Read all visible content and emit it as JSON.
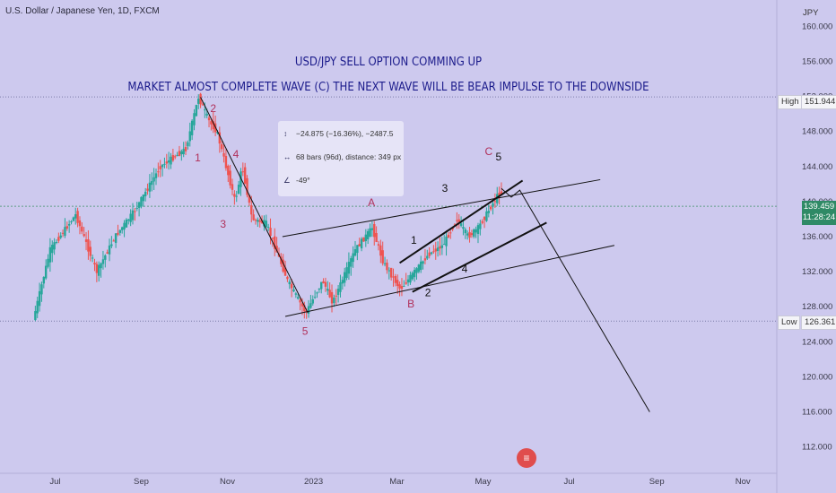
{
  "header": {
    "symbol": "U.S. Dollar / Japanese Yen, 1D, FXCM",
    "currency": "JPY"
  },
  "annotation": {
    "title_line1": "USD/JPY SELL OPTION COMMING UP",
    "title_line2": "MARKET ALMOST COMPLETE WAVE (C) THE NEXT WAVE WILL BE BEAR IMPULSE TO THE DOWNSIDE",
    "measure_price": "−24.875 (−16.36%), −2487.5",
    "measure_bars": "68 bars (96d), distance: 349 px",
    "measure_angle": "-49°"
  },
  "price_scale": {
    "high_label": "High",
    "high_value": "151.944",
    "low_label": "Low",
    "low_value": "126.361",
    "last_price": "139.459",
    "countdown": "11:28:24"
  },
  "colors": {
    "background": "#cdc9ee",
    "bull": "#26a69a",
    "bear": "#ef5350",
    "annotation": "#1c1c8c",
    "wave_red": "#b0305a",
    "last_price": "#2f8a66"
  },
  "chart_data": {
    "type": "candlestick",
    "y_axis": {
      "ticks": [
        112,
        116,
        120,
        124,
        128,
        132,
        136,
        140,
        144,
        148,
        152,
        156,
        160
      ],
      "tick_labels": [
        "112.000",
        "116.000",
        "120.000",
        "124.000",
        "128.000",
        "132.000",
        "136.000",
        "140.000",
        "144.000",
        "148.000",
        "152.000",
        "156.000",
        "160.000"
      ],
      "range": [
        109,
        163
      ]
    },
    "x_axis": {
      "tick_labels": [
        "Jul",
        "Sep",
        "Nov",
        "2023",
        "Mar",
        "May",
        "Jul",
        "Sep",
        "Nov"
      ],
      "tick_days": [
        14,
        75,
        136,
        197,
        256,
        317,
        378,
        440,
        501
      ],
      "range": [
        -25,
        525
      ]
    },
    "price_path": [
      {
        "day": 0,
        "price": 126.5
      },
      {
        "day": 12,
        "price": 134.5
      },
      {
        "day": 30,
        "price": 138.5
      },
      {
        "day": 45,
        "price": 132
      },
      {
        "day": 58,
        "price": 136
      },
      {
        "day": 72,
        "price": 139
      },
      {
        "day": 90,
        "price": 144
      },
      {
        "day": 108,
        "price": 146
      },
      {
        "day": 117,
        "price": 151.9
      },
      {
        "day": 125,
        "price": 149
      },
      {
        "day": 130,
        "price": 148
      },
      {
        "day": 143,
        "price": 140
      },
      {
        "day": 148,
        "price": 144
      },
      {
        "day": 155,
        "price": 138
      },
      {
        "day": 165,
        "price": 137.5
      },
      {
        "day": 180,
        "price": 131
      },
      {
        "day": 193,
        "price": 127.3
      },
      {
        "day": 205,
        "price": 131
      },
      {
        "day": 212,
        "price": 128.5
      },
      {
        "day": 228,
        "price": 134.5
      },
      {
        "day": 240,
        "price": 137
      },
      {
        "day": 248,
        "price": 133
      },
      {
        "day": 260,
        "price": 130
      },
      {
        "day": 270,
        "price": 132
      },
      {
        "day": 280,
        "price": 134
      },
      {
        "day": 290,
        "price": 135
      },
      {
        "day": 300,
        "price": 138
      },
      {
        "day": 308,
        "price": 136
      },
      {
        "day": 315,
        "price": 137
      },
      {
        "day": 330,
        "price": 141
      }
    ],
    "high": 151.944,
    "low": 126.361,
    "last": 139.459,
    "projection_path": [
      {
        "day": 330,
        "price": 141.5
      },
      {
        "day": 337,
        "price": 140.5
      },
      {
        "day": 343,
        "price": 141.3
      },
      {
        "day": 435,
        "price": 116
      }
    ],
    "trendlines": [
      {
        "name": "main-channel-top",
        "from": {
          "day": 175,
          "price": 136
        },
        "to": {
          "day": 400,
          "price": 142.5
        }
      },
      {
        "name": "main-channel-bottom",
        "from": {
          "day": 177,
          "price": 126.9
        },
        "to": {
          "day": 410,
          "price": 135
        }
      },
      {
        "name": "decline-line",
        "from": {
          "day": 117,
          "price": 151.9
        },
        "to": {
          "day": 193,
          "price": 127.3
        }
      },
      {
        "name": "impulse-channel-top",
        "from": {
          "day": 258,
          "price": 133
        },
        "to": {
          "day": 345,
          "price": 142.4
        }
      },
      {
        "name": "impulse-channel-bottom",
        "from": {
          "day": 267,
          "price": 129.7
        },
        "to": {
          "day": 362,
          "price": 137.6
        }
      }
    ],
    "wave_labels": [
      {
        "text": "1",
        "day": 115,
        "price": 144.6,
        "color": "red"
      },
      {
        "text": "2",
        "day": 126,
        "price": 150.2,
        "color": "red"
      },
      {
        "text": "3",
        "day": 133,
        "price": 137,
        "color": "red"
      },
      {
        "text": "4",
        "day": 142,
        "price": 145,
        "color": "red"
      },
      {
        "text": "5",
        "day": 191,
        "price": 124.8,
        "color": "red"
      },
      {
        "text": "A",
        "day": 238,
        "price": 139.5,
        "color": "red"
      },
      {
        "text": "B",
        "day": 266,
        "price": 127.9,
        "color": "red"
      },
      {
        "text": "C",
        "day": 321,
        "price": 145.3,
        "color": "red"
      },
      {
        "text": "1",
        "day": 268,
        "price": 135.2,
        "color": "black"
      },
      {
        "text": "2",
        "day": 278,
        "price": 129.2,
        "color": "black"
      },
      {
        "text": "3",
        "day": 290,
        "price": 141.1,
        "color": "black"
      },
      {
        "text": "4",
        "day": 304,
        "price": 131.9,
        "color": "black"
      },
      {
        "text": "5",
        "day": 328,
        "price": 144.7,
        "color": "black"
      }
    ]
  }
}
